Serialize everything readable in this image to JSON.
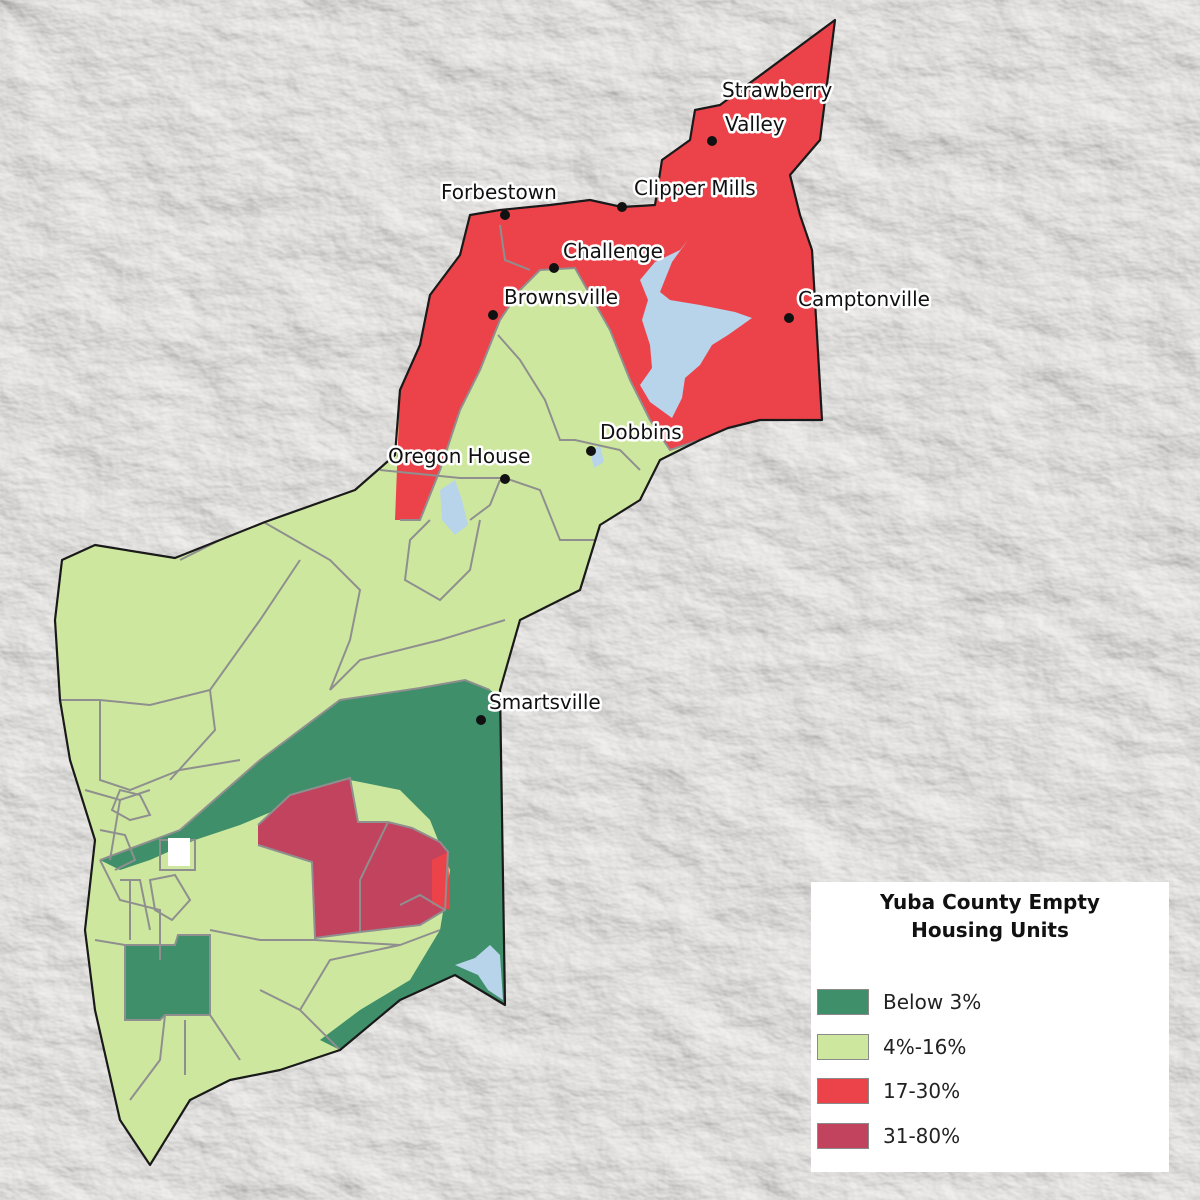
{
  "legend": {
    "title_line1": "Yuba County Empty",
    "title_line2": "Housing Units",
    "items": [
      {
        "label": "Below 3%",
        "color": "#3f8f6a"
      },
      {
        "label": "4%-16%",
        "color": "#cde89e"
      },
      {
        "label": "17-30%",
        "color": "#ec434a"
      },
      {
        "label": "31-80%",
        "color": "#c2435e"
      }
    ]
  },
  "towns": [
    {
      "name": "Strawberry"
    },
    {
      "name": "Valley"
    },
    {
      "name": "Forbestown"
    },
    {
      "name": "Clipper Mills"
    },
    {
      "name": "Challenge"
    },
    {
      "name": "Brownsville"
    },
    {
      "name": "Camptonville"
    },
    {
      "name": "Dobbins"
    },
    {
      "name": "Oregon House"
    },
    {
      "name": "Smartsville"
    }
  ],
  "colors": {
    "background": "#f3f2f0",
    "water": "#b7d4ea",
    "boundary": "#1a1a1a",
    "tract_lines": "#8f8f8f"
  }
}
